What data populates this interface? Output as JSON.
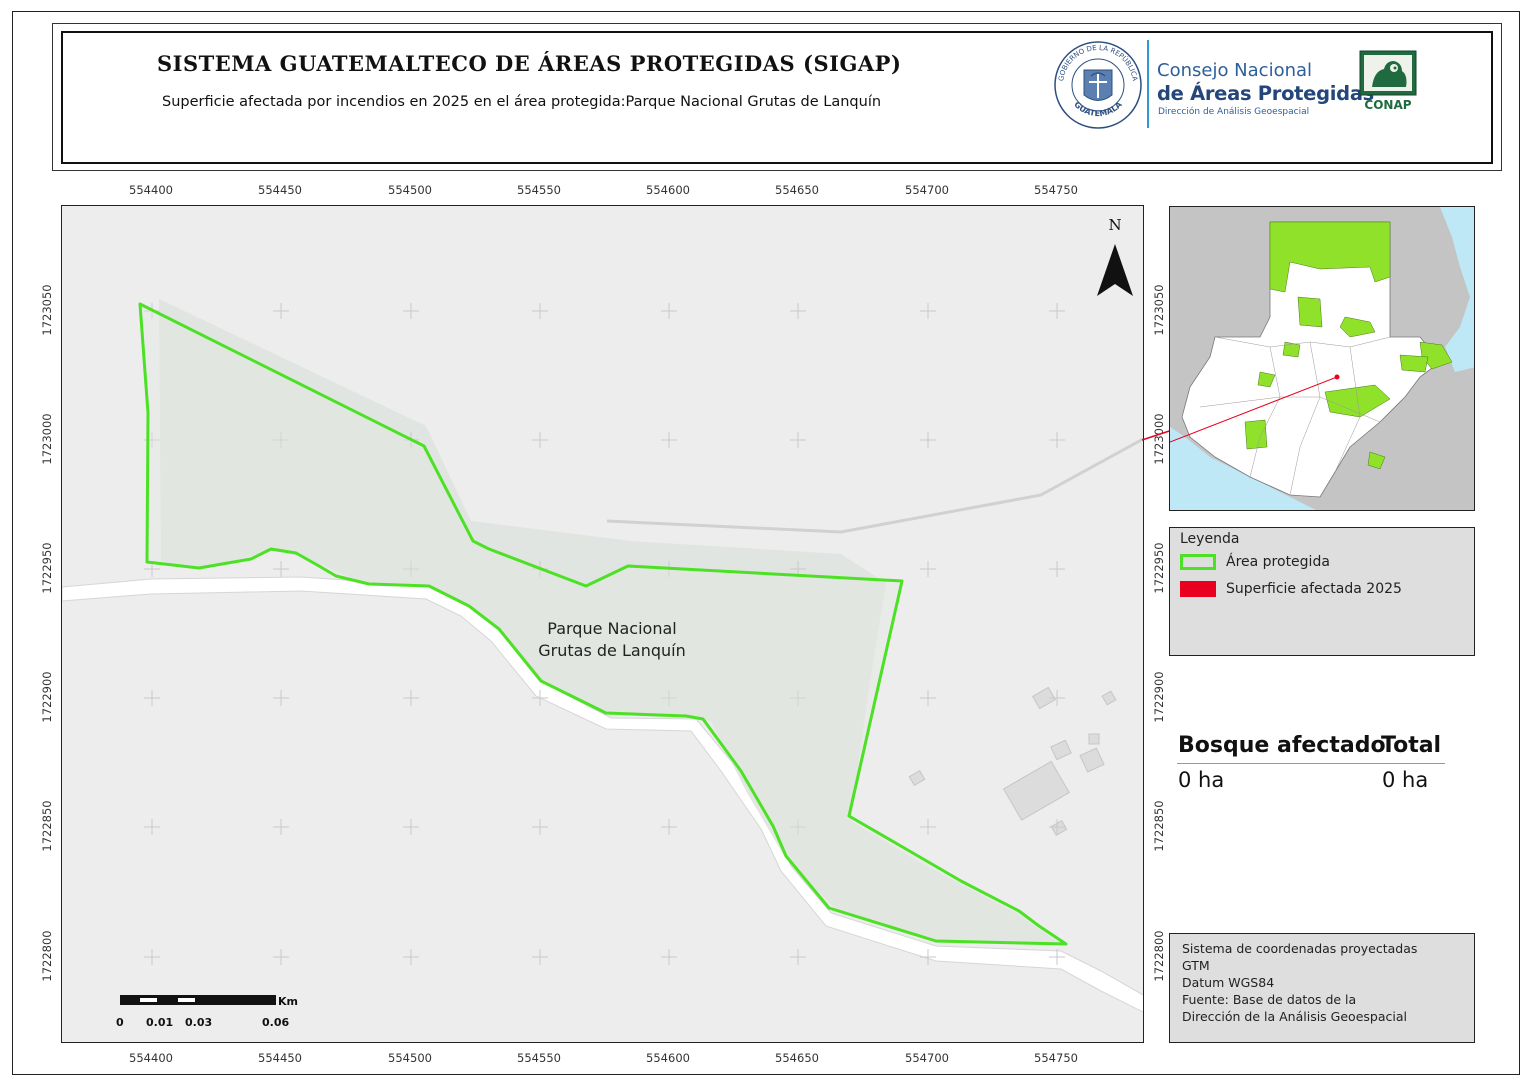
{
  "header": {
    "title": "SISTEMA GUATEMALTECO DE ÁREAS PROTEGIDAS  (SIGAP)",
    "subtitle": "Superficie afectada por incendios en 2025 en el área protegida:Parque Nacional Grutas de Lanquín",
    "seal_text_top": "GOBIERNO DE LA REPÚBLICA",
    "seal_text_bottom": "GUATEMALA",
    "conap_line1": "Consejo Nacional",
    "conap_line2": "de Áreas Protegidas",
    "conap_line3": "Dirección de Análisis Geoespacial",
    "conap_logo_text": "CONAP"
  },
  "map": {
    "area_label_line1": "Parque Nacional",
    "area_label_line2": "Grutas de Lanquín",
    "north_label": "N",
    "x_ticks": [
      "554400",
      "554450",
      "554500",
      "554550",
      "554600",
      "554650",
      "554700",
      "554750"
    ],
    "y_ticks": [
      "1723050",
      "1723000",
      "1722950",
      "1722900",
      "1722850",
      "1722800"
    ],
    "colors": {
      "protected_area": "#4ce125",
      "burned_area": "#e8001e",
      "basemap": "#ededed",
      "area_fill": "#e2e6e2"
    },
    "burned_area_ha": 0,
    "scale_bar": {
      "unit": "Km",
      "labels": [
        "0",
        "0.01",
        "0.03",
        "0.06"
      ]
    }
  },
  "legend": {
    "title": "Leyenda",
    "items": [
      {
        "label": "Área protegida",
        "symbol": "green-outline"
      },
      {
        "label": "Superficie afectada 2025",
        "symbol": "red-fill"
      }
    ]
  },
  "stats": {
    "col1_header": "Bosque afectado",
    "col2_header": "Total",
    "col1_value": "0 ha",
    "col2_value": "0 ha"
  },
  "coordinate_info": {
    "lines": [
      "Sistema de coordenadas proyectadas",
      "GTM",
      "Datum WGS84",
      "Fuente: Base de datos de la",
      "Dirección de la Análisis Geoespacial"
    ]
  }
}
